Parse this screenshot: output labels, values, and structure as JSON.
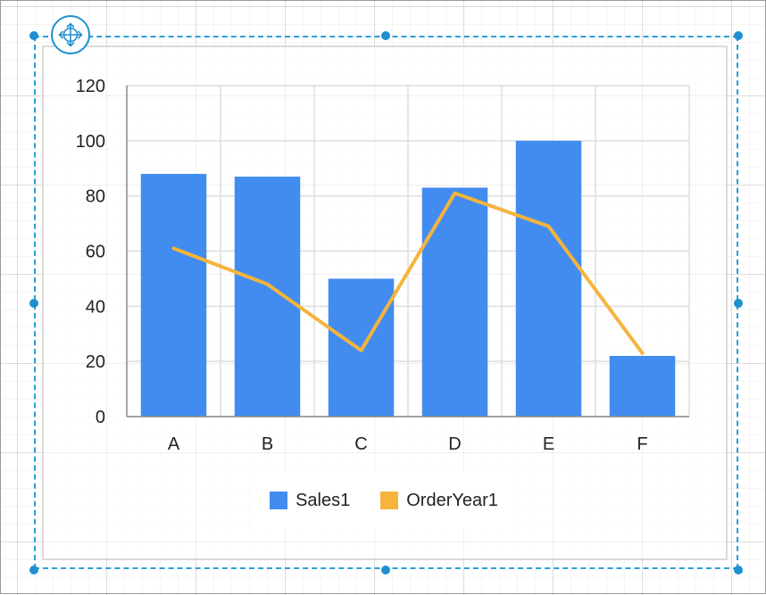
{
  "colors": {
    "sales": "#428cef",
    "order": "#f5b43c",
    "selection": "#1e90d0",
    "axis": "#888888"
  },
  "designer": {
    "move_handle_icon": "move-arrows-icon",
    "resize_handle_icon": "resize-handle-icon"
  },
  "chart_data": {
    "type": "bar",
    "categories": [
      "A",
      "B",
      "C",
      "D",
      "E",
      "F"
    ],
    "series": [
      {
        "name": "Sales1",
        "type": "bar",
        "values": [
          88,
          87,
          50,
          83,
          100,
          22
        ]
      },
      {
        "name": "OrderYear1",
        "type": "line",
        "values": [
          61,
          48,
          24,
          81,
          69,
          23
        ]
      }
    ],
    "ylim": [
      0,
      120
    ],
    "yticks": [
      0,
      20,
      40,
      60,
      80,
      100,
      120
    ],
    "grid": true,
    "legend_position": "bottom"
  },
  "legend": {
    "items": [
      {
        "label": "Sales1"
      },
      {
        "label": "OrderYear1"
      }
    ]
  }
}
